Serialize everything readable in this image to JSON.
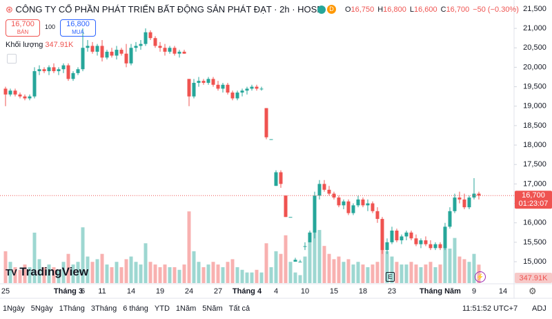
{
  "header": {
    "title": "CÔNG TY CỔ PHẦN PHÁT TRIỂN BẤT ĐỘNG SẢN PHÁT ĐẠT · 2h · HOSE",
    "badge": "D",
    "ohlc": [
      {
        "label": "O",
        "value": "16,750"
      },
      {
        "label": "H",
        "value": "16,800"
      },
      {
        "label": "L",
        "value": "16,600"
      },
      {
        "label": "C",
        "value": "16,700"
      }
    ],
    "change": "−50 (−0.30%)"
  },
  "trade": {
    "sell_price": "16,700",
    "sell_label": "BÁN",
    "spread": "100",
    "buy_price": "16,800",
    "buy_label": "MUA"
  },
  "volume_legend": {
    "label": "Khối lượng",
    "value": "347.91K"
  },
  "logo": "TradingView",
  "marker": "E",
  "chart_data": {
    "type": "candlestick",
    "up_color": "#26a69a",
    "down_color": "#ef5350",
    "categories": [
      "25",
      null,
      null,
      null,
      null,
      null,
      null,
      null,
      null,
      null,
      null,
      null,
      null,
      "Tháng 3",
      null,
      null,
      "6",
      null,
      null,
      null,
      "11",
      null,
      null,
      null,
      null,
      null,
      "14",
      null,
      null,
      null,
      null,
      null,
      "19",
      null,
      null,
      null,
      null,
      null,
      "24",
      null,
      null,
      null,
      null,
      null,
      "27",
      null,
      null,
      null,
      null,
      null,
      "Tháng 4",
      null,
      null,
      null,
      null,
      null,
      "4",
      null,
      null,
      null,
      null,
      null,
      "10",
      null,
      null,
      null,
      null,
      null,
      "15",
      null,
      null,
      null,
      null,
      null,
      "18",
      null,
      null,
      null,
      null,
      null,
      "23",
      null,
      null,
      null,
      null,
      null,
      null,
      null,
      null,
      null,
      "Tháng Năm",
      null,
      null,
      null,
      null,
      null,
      null,
      "9",
      null,
      null,
      null,
      null,
      null,
      "14"
    ],
    "open": [
      19450,
      19300,
      19400,
      19300,
      19250,
      19200,
      19250,
      19900,
      19950,
      19900,
      20000,
      19900,
      19950,
      20050,
      19700,
      19850,
      19950,
      20500,
      20550,
      20400,
      20550,
      20250,
      20400,
      20300,
      20450,
      20350,
      20100,
      20500,
      20550,
      20600,
      20900,
      20750,
      20550,
      20500,
      20400,
      20500,
      20350,
      20400,
      19700,
      19250,
      19600,
      19650,
      19600,
      19700,
      19550,
      19450,
      19550,
      19350,
      19200,
      19350,
      19400,
      19450,
      19500,
      19450,
      18950,
      18150,
      16950,
      17300,
      16700,
      16150,
      15000,
      15000,
      15400,
      15500,
      15750,
      16700,
      17000,
      16850,
      16750,
      16650,
      16450,
      16550,
      16250,
      16450,
      16600,
      16450,
      16500,
      16300,
      16100,
      15300,
      15500,
      15800,
      15550,
      15650,
      15750,
      15600,
      15450,
      15550,
      15450,
      15350,
      15450,
      15350,
      15900,
      16300,
      16650,
      16600,
      16400,
      16650,
      16750,
      null,
      null,
      null,
      null,
      null
    ],
    "high": [
      19500,
      19450,
      19450,
      19350,
      19300,
      19300,
      20000,
      20050,
      20000,
      20050,
      20100,
      20000,
      20100,
      20100,
      19900,
      20000,
      21000,
      20700,
      20650,
      20600,
      20700,
      20450,
      20500,
      20550,
      20500,
      20600,
      20600,
      20650,
      20700,
      21000,
      20950,
      20800,
      20650,
      20600,
      20550,
      20550,
      20450,
      20450,
      19700,
      19700,
      19750,
      19700,
      19750,
      19750,
      19650,
      19600,
      19600,
      19400,
      19400,
      19450,
      19500,
      19550,
      19550,
      19500,
      18950,
      18150,
      17350,
      17350,
      16700,
      16150,
      15100,
      15050,
      15500,
      15800,
      16800,
      17100,
      17100,
      16950,
      16800,
      16700,
      16600,
      16600,
      16500,
      16700,
      16650,
      16600,
      16550,
      16400,
      16150,
      15600,
      15900,
      15850,
      15700,
      15800,
      15800,
      15700,
      15600,
      15650,
      15550,
      15500,
      15500,
      16000,
      16400,
      16750,
      16800,
      16750,
      16700,
      17150,
      16800,
      null,
      null,
      null,
      null,
      null
    ],
    "low": [
      19000,
      19250,
      19250,
      19200,
      19150,
      19150,
      19200,
      19800,
      19850,
      19800,
      19850,
      19800,
      19850,
      19650,
      19650,
      19800,
      19900,
      20400,
      20350,
      20300,
      20150,
      20200,
      20250,
      20200,
      20300,
      20000,
      20050,
      20400,
      20450,
      20550,
      20700,
      20500,
      20400,
      20300,
      20350,
      20300,
      20250,
      20350,
      19000,
      19200,
      19500,
      19550,
      19550,
      19500,
      19400,
      19350,
      19300,
      19150,
      19150,
      19250,
      19300,
      19400,
      19400,
      19400,
      18150,
      18150,
      16950,
      16900,
      16150,
      16150,
      15000,
      15000,
      15300,
      15500,
      15600,
      16600,
      16800,
      16700,
      16600,
      16400,
      16350,
      16200,
      16200,
      16400,
      16400,
      16300,
      16250,
      16000,
      15200,
      15200,
      15450,
      15500,
      15450,
      15550,
      15550,
      15400,
      15350,
      15400,
      15300,
      15300,
      15300,
      15300,
      15850,
      16250,
      16500,
      16350,
      16350,
      16600,
      16600,
      null,
      null,
      null,
      null,
      null
    ],
    "close": [
      19300,
      19400,
      19300,
      19250,
      19200,
      19250,
      19900,
      19950,
      19900,
      20000,
      19900,
      19950,
      20050,
      19700,
      19850,
      19950,
      20500,
      20550,
      20400,
      20550,
      20250,
      20400,
      20300,
      20450,
      20350,
      20100,
      20500,
      20550,
      20600,
      20900,
      20750,
      20550,
      20500,
      20400,
      20500,
      20350,
      20400,
      20350,
      19250,
      19600,
      19650,
      19600,
      19700,
      19550,
      19450,
      19550,
      19350,
      19200,
      19350,
      19400,
      19450,
      19500,
      19450,
      19450,
      18200,
      18150,
      17300,
      17000,
      16150,
      16150,
      15050,
      15000,
      15400,
      15750,
      16700,
      17000,
      16850,
      16750,
      16650,
      16450,
      16550,
      16250,
      16450,
      16600,
      16450,
      16500,
      16300,
      16100,
      15300,
      15500,
      15800,
      15550,
      15650,
      15750,
      15600,
      15450,
      15550,
      15450,
      15350,
      15450,
      15350,
      15900,
      16300,
      16650,
      16600,
      16400,
      16650,
      16750,
      16700,
      null,
      null,
      null,
      null,
      null
    ],
    "volume": [
      600,
      400,
      300,
      250,
      350,
      300,
      950,
      450,
      300,
      350,
      300,
      250,
      400,
      550,
      350,
      400,
      1050,
      500,
      400,
      450,
      550,
      350,
      300,
      400,
      300,
      450,
      500,
      400,
      350,
      750,
      400,
      350,
      300,
      350,
      300,
      300,
      250,
      350,
      1350,
      600,
      400,
      300,
      350,
      400,
      350,
      300,
      400,
      450,
      300,
      250,
      200,
      200,
      250,
      200,
      750,
      300,
      600,
      550,
      900,
      400,
      200,
      150,
      500,
      900,
      1300,
      1000,
      700,
      550,
      450,
      500,
      400,
      450,
      350,
      400,
      350,
      300,
      350,
      400,
      900,
      600,
      500,
      400,
      350,
      350,
      400,
      350,
      300,
      350,
      400,
      300,
      350,
      700,
      650,
      850,
      500,
      450,
      400,
      550,
      347.91,
      null,
      null,
      null,
      null,
      null
    ],
    "volume_tag": "347.91K",
    "ylim": [
      14450,
      21730
    ],
    "yticks": [
      {
        "value": 15000,
        "label": "15,000"
      },
      {
        "value": 15500,
        "label": "15,500"
      },
      {
        "value": 16000,
        "label": "16,000"
      },
      {
        "value": 16500,
        "label": "16,500"
      },
      {
        "value": 17000,
        "label": "17,000"
      },
      {
        "value": 17500,
        "label": "17,500"
      },
      {
        "value": 18000,
        "label": "18,000"
      },
      {
        "value": 18500,
        "label": "18,500"
      },
      {
        "value": 19000,
        "label": "19,000"
      },
      {
        "value": 19500,
        "label": "19,500"
      },
      {
        "value": 20000,
        "label": "20,000"
      },
      {
        "value": 20500,
        "label": "20,500"
      },
      {
        "value": 21000,
        "label": "21,000"
      },
      {
        "value": 21500,
        "label": "21,500"
      }
    ],
    "last_price": {
      "value": 16700,
      "label": "16,700"
    },
    "countdown": "01:23:07"
  },
  "toolbar": {
    "ranges": [
      "1Ngày",
      "5Ngày",
      "1Tháng",
      "3Tháng",
      "6 tháng",
      "YTD",
      "1Năm",
      "5Năm",
      "Tất cả"
    ],
    "time": "11:51:52 UTC+7",
    "adj": "ADJ"
  }
}
